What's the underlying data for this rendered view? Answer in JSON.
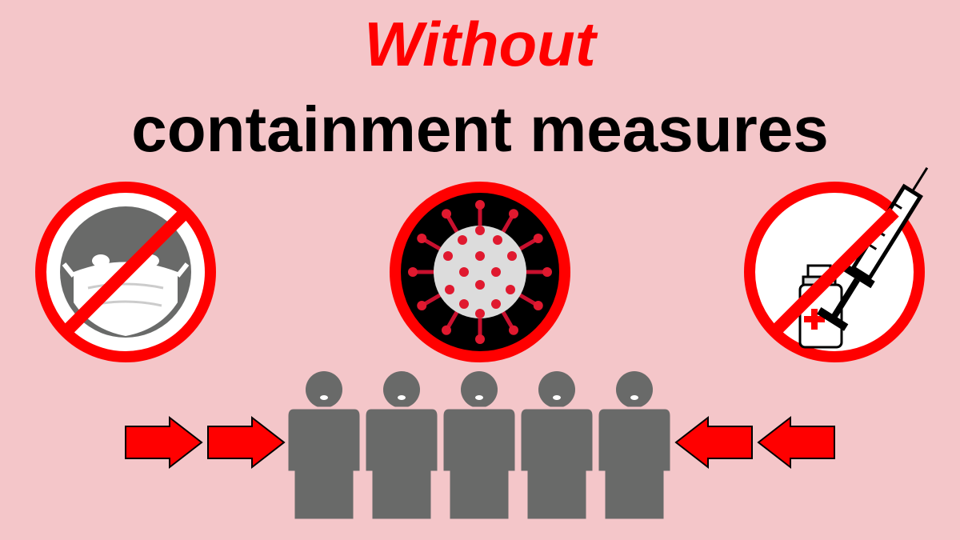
{
  "title": {
    "line1": "Without",
    "line2": "containment measures"
  },
  "colors": {
    "background": "#f4c6c9",
    "accent": "#ff0000",
    "figure": "#696a69",
    "text": "#000000"
  },
  "icons": {
    "left": "no-mask-icon",
    "center": "virus-icon",
    "right": "no-vaccine-icon",
    "crowd": "people-group-icon",
    "arrows": "arrow-right-icon"
  },
  "crowd": {
    "people_count": 5
  }
}
